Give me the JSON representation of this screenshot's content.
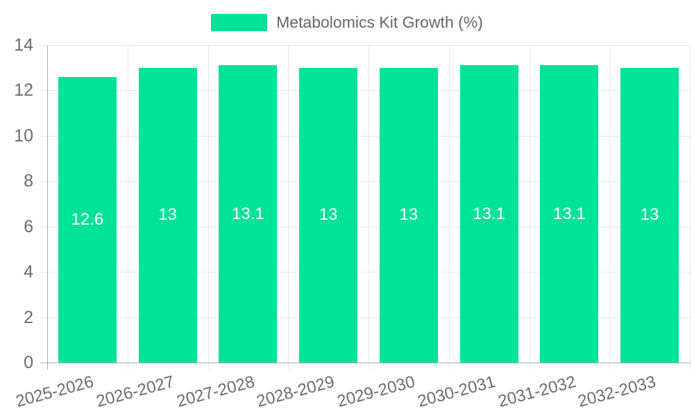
{
  "chart_data": {
    "type": "bar",
    "title": "Metabolomics Kit Growth (%)",
    "categories": [
      "2025-2026",
      "2026-2027",
      "2027-2028",
      "2028-2029",
      "2029-2030",
      "2030-2031",
      "2031-2032",
      "2032-2033"
    ],
    "series": [
      {
        "name": "Metabolomics Kit Growth (%)",
        "values": [
          12.6,
          13,
          13.1,
          13,
          13,
          13.1,
          13.1,
          13
        ]
      }
    ],
    "value_labels": [
      "12.6",
      "13",
      "13.1",
      "13",
      "13",
      "13.1",
      "13.1",
      "13"
    ],
    "xlabel": "",
    "ylabel": "",
    "ylim": [
      0,
      14
    ],
    "yticks": [
      0,
      2,
      4,
      6,
      8,
      10,
      12,
      14
    ],
    "ytick_step": 2,
    "grid": true,
    "legend_position": "top-center",
    "x_label_rotation_deg": -15,
    "style": {
      "bar_color": "#00E396",
      "bar_label_color": "#ffffff",
      "axis_text_color": "#6b6b6b",
      "legend_text_color": "#666666",
      "grid_color": "#e7e7e7",
      "axis_line_color": "#a9a9ad",
      "baseline_color": "#a9a9ad",
      "background": "#ffffff"
    }
  }
}
